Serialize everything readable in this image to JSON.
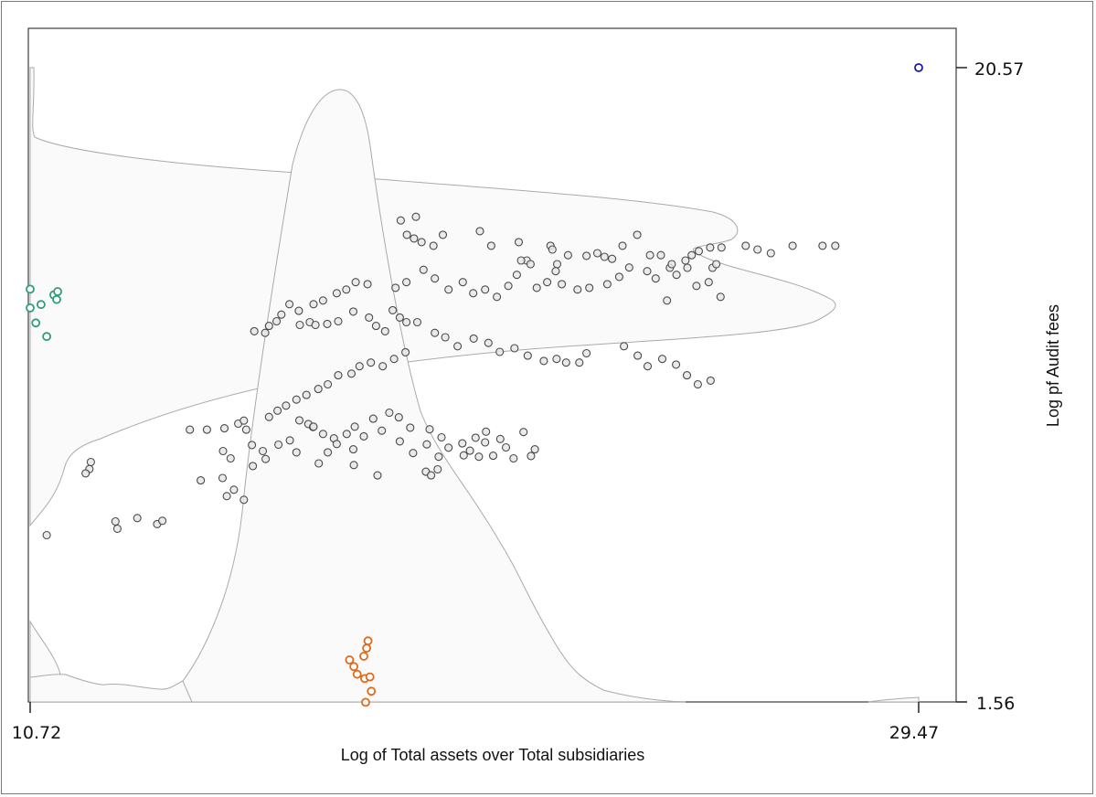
{
  "chart_data": {
    "type": "scatter",
    "title": "",
    "xlabel": "Log of Total assets over Total subsidiaries",
    "ylabel": "Log pf Audit fees",
    "xlim": [
      10.72,
      29.47
    ],
    "ylim": [
      1.56,
      20.57
    ],
    "x_ticks": [
      "10.72",
      "29.47"
    ],
    "y_ticks": [
      "20.57",
      "1.56"
    ],
    "y_axis_position": "right",
    "grid": false,
    "legend": null,
    "colors": {
      "main_points": "#4a4a4a",
      "main_fill": "#e6e6e6",
      "left_outliers": "#2e9e78",
      "bottom_outliers": "#e06a1c",
      "top_right_outlier": "#1a1ab0",
      "density_outline": "#a8a8a8",
      "density_fill": "#fbfbfb"
    },
    "series": [
      {
        "name": "main",
        "color": "#4a4a4a",
        "points": [
          [
            18.54,
            15.99
          ],
          [
            18.86,
            16.1
          ],
          [
            18.67,
            15.56
          ],
          [
            18.82,
            15.45
          ],
          [
            18.98,
            15.34
          ],
          [
            19.43,
            15.56
          ],
          [
            19.23,
            15.23
          ],
          [
            20.21,
            15.67
          ],
          [
            20.45,
            15.23
          ],
          [
            21.03,
            15.34
          ],
          [
            21.2,
            14.79
          ],
          [
            21.28,
            14.68
          ],
          [
            21.08,
            14.79
          ],
          [
            21.7,
            15.23
          ],
          [
            21.74,
            15.12
          ],
          [
            21.84,
            14.68
          ],
          [
            22.07,
            14.95
          ],
          [
            22.46,
            14.93
          ],
          [
            22.69,
            15.01
          ],
          [
            22.84,
            14.9
          ],
          [
            23.0,
            14.84
          ],
          [
            23.22,
            15.23
          ],
          [
            23.53,
            15.56
          ],
          [
            23.8,
            14.95
          ],
          [
            24.03,
            14.95
          ],
          [
            24.22,
            14.57
          ],
          [
            24.26,
            14.68
          ],
          [
            24.55,
            14.79
          ],
          [
            24.68,
            14.95
          ],
          [
            24.83,
            15.07
          ],
          [
            25.07,
            15.18
          ],
          [
            25.31,
            15.18
          ],
          [
            25.12,
            14.57
          ],
          [
            25.82,
            15.23
          ],
          [
            26.07,
            15.12
          ],
          [
            26.35,
            15.01
          ],
          [
            26.81,
            15.23
          ],
          [
            27.44,
            15.23
          ],
          [
            27.71,
            15.23
          ],
          [
            23.74,
            14.47
          ],
          [
            23.92,
            14.25
          ],
          [
            24.36,
            14.36
          ],
          [
            24.59,
            14.57
          ],
          [
            24.78,
            14.03
          ],
          [
            25.04,
            14.14
          ],
          [
            25.2,
            14.68
          ],
          [
            25.29,
            13.7
          ],
          [
            24.16,
            13.59
          ],
          [
            23.36,
            14.58
          ],
          [
            23.15,
            14.3
          ],
          [
            22.9,
            14.08
          ],
          [
            22.52,
            13.97
          ],
          [
            22.27,
            13.92
          ],
          [
            21.94,
            14.08
          ],
          [
            21.81,
            14.47
          ],
          [
            21.63,
            14.14
          ],
          [
            21.41,
            13.97
          ],
          [
            20.99,
            14.36
          ],
          [
            20.81,
            14.03
          ],
          [
            20.57,
            13.7
          ],
          [
            20.32,
            13.92
          ],
          [
            20.07,
            13.81
          ],
          [
            19.85,
            14.14
          ],
          [
            19.55,
            13.92
          ],
          [
            19.26,
            14.25
          ],
          [
            19.02,
            14.51
          ],
          [
            18.66,
            14.14
          ],
          [
            18.43,
            13.97
          ],
          [
            17.84,
            14.08
          ],
          [
            17.59,
            14.14
          ],
          [
            17.39,
            13.92
          ],
          [
            17.19,
            13.81
          ],
          [
            16.9,
            13.59
          ],
          [
            16.7,
            13.48
          ],
          [
            16.39,
            13.28
          ],
          [
            16.19,
            13.48
          ],
          [
            16.02,
            13.17
          ],
          [
            15.92,
            12.97
          ],
          [
            15.68,
            12.62
          ],
          [
            15.45,
            12.67
          ],
          [
            15.76,
            12.83
          ],
          [
            16.41,
            12.86
          ],
          [
            16.62,
            12.94
          ],
          [
            16.74,
            12.86
          ],
          [
            16.99,
            12.89
          ],
          [
            17.22,
            12.97
          ],
          [
            17.54,
            13.26
          ],
          [
            17.87,
            13.08
          ],
          [
            18.02,
            12.83
          ],
          [
            18.21,
            12.67
          ],
          [
            18.37,
            13.3
          ],
          [
            18.52,
            13.08
          ],
          [
            18.66,
            12.94
          ],
          [
            18.89,
            12.94
          ],
          [
            19.26,
            12.62
          ],
          [
            19.48,
            12.49
          ],
          [
            19.74,
            12.22
          ],
          [
            20.08,
            12.45
          ],
          [
            20.39,
            12.32
          ],
          [
            20.63,
            12.05
          ],
          [
            20.94,
            12.16
          ],
          [
            21.22,
            11.94
          ],
          [
            21.56,
            11.78
          ],
          [
            21.83,
            11.84
          ],
          [
            22.03,
            11.73
          ],
          [
            22.31,
            11.73
          ],
          [
            22.46,
            12.01
          ],
          [
            23.25,
            12.22
          ],
          [
            23.54,
            11.94
          ],
          [
            23.75,
            11.62
          ],
          [
            24.06,
            11.84
          ],
          [
            24.35,
            11.67
          ],
          [
            24.58,
            11.35
          ],
          [
            24.81,
            11.08
          ],
          [
            25.08,
            11.19
          ],
          [
            18.64,
            12.04
          ],
          [
            18.4,
            11.84
          ],
          [
            18.16,
            11.62
          ],
          [
            17.91,
            11.73
          ],
          [
            17.67,
            11.62
          ],
          [
            17.5,
            11.4
          ],
          [
            17.22,
            11.35
          ],
          [
            17.0,
            11.08
          ],
          [
            16.8,
            10.94
          ],
          [
            16.55,
            10.76
          ],
          [
            16.34,
            10.62
          ],
          [
            16.12,
            10.44
          ],
          [
            15.94,
            10.29
          ],
          [
            15.76,
            10.1
          ],
          [
            16.4,
            10.0
          ],
          [
            16.59,
            9.89
          ],
          [
            16.69,
            9.8
          ],
          [
            16.9,
            9.59
          ],
          [
            17.13,
            9.46
          ],
          [
            17.4,
            9.59
          ],
          [
            17.57,
            9.81
          ],
          [
            17.76,
            9.52
          ],
          [
            17.96,
            10.05
          ],
          [
            18.3,
            10.23
          ],
          [
            18.5,
            10.09
          ],
          [
            18.74,
            9.78
          ],
          [
            19.15,
            9.73
          ],
          [
            19.4,
            9.49
          ],
          [
            19.55,
            9.18
          ],
          [
            19.84,
            9.31
          ],
          [
            20.12,
            9.48
          ],
          [
            20.34,
            9.66
          ],
          [
            20.76,
            9.19
          ],
          [
            21.13,
            9.65
          ],
          [
            21.37,
            9.13
          ],
          [
            15.11,
            9.9
          ],
          [
            15.28,
            9.72
          ],
          [
            15.4,
            9.26
          ],
          [
            15.63,
            9.08
          ],
          [
            15.96,
            9.27
          ],
          [
            16.2,
            9.4
          ],
          [
            16.34,
            9.04
          ],
          [
            17.0,
            9.04
          ],
          [
            17.19,
            9.29
          ],
          [
            17.54,
            9.13
          ],
          [
            18.14,
            9.69
          ],
          [
            18.52,
            9.37
          ],
          [
            18.8,
            9.02
          ],
          [
            19.09,
            9.28
          ],
          [
            19.34,
            8.91
          ],
          [
            19.87,
            8.95
          ],
          [
            20.19,
            8.91
          ],
          [
            20.49,
            8.94
          ],
          [
            20.92,
            8.86
          ],
          [
            21.29,
            8.93
          ],
          [
            14.82,
            9.76
          ],
          [
            14.45,
            9.72
          ],
          [
            14.09,
            9.72
          ],
          [
            14.79,
            9.08
          ],
          [
            14.95,
            8.86
          ],
          [
            14.78,
            8.27
          ],
          [
            15.02,
            7.92
          ],
          [
            15.23,
            7.62
          ],
          [
            14.87,
            7.73
          ],
          [
            15.23,
            9.99
          ],
          [
            16.7,
            9.81
          ],
          [
            15.42,
            8.63
          ],
          [
            14.32,
            8.2
          ],
          [
            15.69,
            8.84
          ],
          [
            16.81,
            8.71
          ],
          [
            17.55,
            8.66
          ],
          [
            18.05,
            8.35
          ],
          [
            19.07,
            8.46
          ],
          [
            19.18,
            8.35
          ],
          [
            19.32,
            8.53
          ],
          [
            20.0,
            9.09
          ],
          [
            20.32,
            9.34
          ],
          [
            20.64,
            9.44
          ],
          [
            12.0,
            8.75
          ],
          [
            11.97,
            8.54
          ],
          [
            11.89,
            8.41
          ],
          [
            12.52,
            6.97
          ],
          [
            12.56,
            6.75
          ],
          [
            12.98,
            7.07
          ],
          [
            13.4,
            6.89
          ],
          [
            13.51,
            6.99
          ],
          [
            11.07,
            6.56
          ]
        ]
      },
      {
        "name": "left-axis",
        "color": "#2e9e78",
        "points": [
          [
            10.72,
            13.93
          ],
          [
            10.72,
            13.37
          ],
          [
            10.84,
            12.92
          ],
          [
            10.95,
            13.47
          ],
          [
            11.07,
            12.51
          ],
          [
            11.22,
            13.76
          ],
          [
            11.28,
            13.62
          ],
          [
            11.3,
            13.86
          ]
        ]
      },
      {
        "name": "bottom",
        "color": "#e06a1c",
        "points": [
          [
            17.46,
            2.82
          ],
          [
            17.55,
            2.62
          ],
          [
            17.62,
            2.39
          ],
          [
            17.76,
            2.93
          ],
          [
            17.8,
            1.55
          ],
          [
            17.78,
            2.26
          ],
          [
            17.89,
            2.31
          ],
          [
            17.85,
            3.39
          ],
          [
            17.82,
            3.17
          ],
          [
            17.92,
            1.88
          ]
        ]
      },
      {
        "name": "top-right",
        "color": "#1a1ab0",
        "points": [
          [
            29.47,
            20.57
          ]
        ]
      }
    ]
  }
}
